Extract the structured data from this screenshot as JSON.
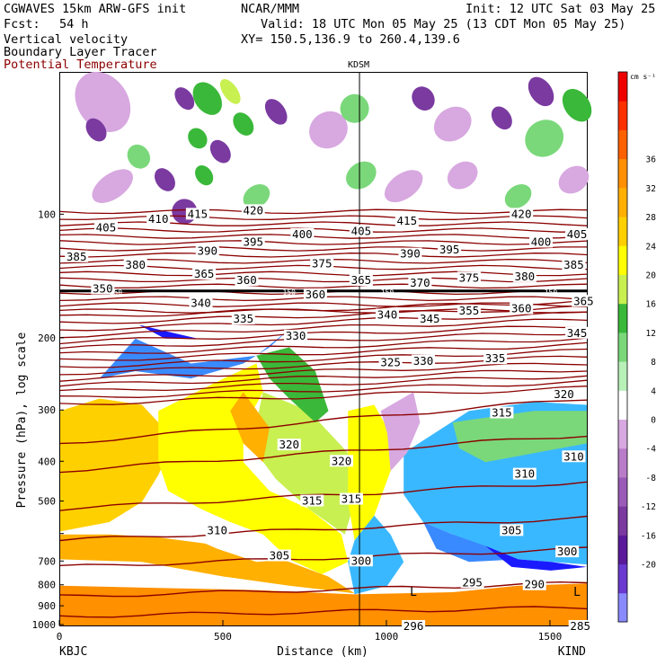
{
  "header": {
    "model": "CGWAVES 15km ARW-GFS init",
    "org": "NCAR/MMM",
    "init": "Init: 12 UTC Sat 03 May 25",
    "fcst_label": "Fcst:",
    "fcst_value": "54 h",
    "valid": "Valid: 18 UTC Mon 05 May 25 (13 CDT Mon 05 May 25)",
    "field1": "Vertical velocity",
    "field2": "Boundary Layer Tracer",
    "field3": "Potential Temperature",
    "xy": "XY= 150.5,136.9 to 260.4,139.6"
  },
  "colors": {
    "theta_lines": "#8b0000",
    "field3_text": "#8b0000",
    "tropopause": "#000000"
  },
  "chart_data": {
    "type": "heatmap",
    "title": "",
    "xlabel": "Distance (km)",
    "ylabel": "Pressure (hPa), log scale",
    "xlim": [
      0,
      1610
    ],
    "ylim": [
      1000,
      45
    ],
    "y_scale": "log",
    "x_ticks": [
      0,
      500,
      1000,
      1500
    ],
    "y_ticks": [
      100,
      200,
      300,
      400,
      500,
      600,
      700,
      800,
      900,
      1000
    ],
    "x_tick_labels": [
      "0",
      "500",
      "1000",
      "1500"
    ],
    "y_tick_labels": [
      "100",
      "200",
      "300",
      "400",
      "500",
      "",
      "700",
      "800",
      "900",
      "1000"
    ],
    "endpoints": {
      "left": "KBJC",
      "right": "KIND"
    },
    "marker": {
      "label": "KDSM",
      "x": 915
    },
    "colorbar": {
      "units": "cm s⁻¹",
      "levels": [
        -20,
        -16,
        -12,
        -8,
        -4,
        0,
        4,
        8,
        12,
        16,
        20,
        24,
        28,
        32,
        36
      ],
      "colors": [
        "#8a8aff",
        "#6a3ad0",
        "#5a1a9a",
        "#7a3aa0",
        "#9a5ab8",
        "#b87cc8",
        "#d8a8e0",
        "#ffffff",
        "#b8f0b8",
        "#7ad87a",
        "#3ab83a",
        "#c8f050",
        "#ffff00",
        "#ffd000",
        "#ffb000",
        "#ff9000",
        "#ff6000",
        "#ff3000",
        "#ee0000"
      ],
      "tick_labels": [
        "-20",
        "-16",
        "-12",
        "-8",
        "-4",
        "0",
        "4",
        "8",
        "12",
        "16",
        "20",
        "24",
        "28",
        "32",
        "36"
      ]
    },
    "theta_labels": [
      {
        "v": "420",
        "x": 590,
        "p": 98
      },
      {
        "v": "420",
        "x": 1410,
        "p": 100
      },
      {
        "v": "415",
        "x": 420,
        "p": 100
      },
      {
        "v": "415",
        "x": 1060,
        "p": 104
      },
      {
        "v": "410",
        "x": 300,
        "p": 103
      },
      {
        "v": "405",
        "x": 140,
        "p": 108
      },
      {
        "v": "405",
        "x": 920,
        "p": 110
      },
      {
        "v": "405",
        "x": 1580,
        "p": 112
      },
      {
        "v": "400",
        "x": 740,
        "p": 112
      },
      {
        "v": "400",
        "x": 1470,
        "p": 117
      },
      {
        "v": "395",
        "x": 590,
        "p": 117
      },
      {
        "v": "395",
        "x": 1190,
        "p": 122
      },
      {
        "v": "390",
        "x": 450,
        "p": 123
      },
      {
        "v": "390",
        "x": 1070,
        "p": 125
      },
      {
        "v": "385",
        "x": 50,
        "p": 127
      },
      {
        "v": "385",
        "x": 1570,
        "p": 133
      },
      {
        "v": "380",
        "x": 230,
        "p": 133
      },
      {
        "v": "380",
        "x": 1420,
        "p": 142
      },
      {
        "v": "375",
        "x": 800,
        "p": 132
      },
      {
        "v": "375",
        "x": 1250,
        "p": 143
      },
      {
        "v": "370",
        "x": 1100,
        "p": 147
      },
      {
        "v": "365",
        "x": 440,
        "p": 140
      },
      {
        "v": "365",
        "x": 920,
        "p": 145
      },
      {
        "v": "365",
        "x": 1600,
        "p": 163
      },
      {
        "v": "360",
        "x": 570,
        "p": 145
      },
      {
        "v": "360",
        "x": 780,
        "p": 157
      },
      {
        "v": "360",
        "x": 1410,
        "p": 170
      },
      {
        "v": "355",
        "x": 1250,
        "p": 172
      },
      {
        "v": "350",
        "x": 130,
        "p": 152
      },
      {
        "v": "345",
        "x": 1130,
        "p": 180
      },
      {
        "v": "345",
        "x": 1580,
        "p": 195
      },
      {
        "v": "340",
        "x": 430,
        "p": 165
      },
      {
        "v": "340",
        "x": 1000,
        "p": 176
      },
      {
        "v": "335",
        "x": 560,
        "p": 180
      },
      {
        "v": "335",
        "x": 1330,
        "p": 225
      },
      {
        "v": "330",
        "x": 720,
        "p": 198
      },
      {
        "v": "330",
        "x": 1110,
        "p": 228
      },
      {
        "v": "325",
        "x": 1010,
        "p": 230
      },
      {
        "v": "320",
        "x": 700,
        "p": 365
      },
      {
        "v": "320",
        "x": 860,
        "p": 400
      },
      {
        "v": "320",
        "x": 1540,
        "p": 275
      },
      {
        "v": "315",
        "x": 770,
        "p": 500
      },
      {
        "v": "315",
        "x": 890,
        "p": 495
      },
      {
        "v": "315",
        "x": 1350,
        "p": 305
      },
      {
        "v": "310",
        "x": 480,
        "p": 590
      },
      {
        "v": "310",
        "x": 1420,
        "p": 430
      },
      {
        "v": "310",
        "x": 1570,
        "p": 390
      },
      {
        "v": "305",
        "x": 670,
        "p": 680
      },
      {
        "v": "305",
        "x": 1380,
        "p": 590
      },
      {
        "v": "300",
        "x": 920,
        "p": 700
      },
      {
        "v": "300",
        "x": 1550,
        "p": 665
      },
      {
        "v": "296",
        "x": 1080,
        "p": 1010
      },
      {
        "v": "295",
        "x": 1260,
        "p": 790
      },
      {
        "v": "290",
        "x": 1450,
        "p": 800
      },
      {
        "v": "285",
        "x": 1590,
        "p": 1010
      }
    ],
    "tropopause_labels": [
      {
        "v": "150",
        "x": 170,
        "p": 150
      },
      {
        "v": "150",
        "x": 700,
        "p": 150
      },
      {
        "v": "150",
        "x": 1000,
        "p": 150
      },
      {
        "v": "150",
        "x": 1500,
        "p": 150
      }
    ],
    "low_markers": [
      {
        "v": "L",
        "x": 1080,
        "p": 830
      },
      {
        "v": "L",
        "x": 1580,
        "p": 830
      }
    ],
    "field_regions": [
      {
        "color": "#ff9000",
        "pts": [
          [
            0,
            1000
          ],
          [
            1610,
            1000
          ],
          [
            1610,
            790
          ],
          [
            1400,
            800
          ],
          [
            1200,
            830
          ],
          [
            900,
            840
          ],
          [
            600,
            820
          ],
          [
            300,
            810
          ],
          [
            0,
            800
          ]
        ]
      },
      {
        "color": "#ffb000",
        "pts": [
          [
            0,
            690
          ],
          [
            250,
            700
          ],
          [
            500,
            760
          ],
          [
            700,
            800
          ],
          [
            900,
            835
          ],
          [
            820,
            760
          ],
          [
            700,
            700
          ],
          [
            500,
            640
          ],
          [
            300,
            610
          ],
          [
            150,
            600
          ],
          [
            0,
            600
          ]
        ]
      },
      {
        "color": "#ffd000",
        "pts": [
          [
            0,
            590
          ],
          [
            150,
            560
          ],
          [
            250,
            500
          ],
          [
            300,
            430
          ],
          [
            330,
            380
          ],
          [
            300,
            320
          ],
          [
            250,
            290
          ],
          [
            120,
            280
          ],
          [
            0,
            300
          ]
        ]
      },
      {
        "color": "#ffff00",
        "pts": [
          [
            300,
            300
          ],
          [
            500,
            250
          ],
          [
            600,
            230
          ],
          [
            620,
            270
          ],
          [
            560,
            330
          ],
          [
            560,
            400
          ],
          [
            640,
            470
          ],
          [
            760,
            520
          ],
          [
            860,
            600
          ],
          [
            880,
            700
          ],
          [
            800,
            750
          ],
          [
            700,
            690
          ],
          [
            620,
            600
          ],
          [
            520,
            560
          ],
          [
            430,
            520
          ],
          [
            330,
            470
          ],
          [
            300,
            400
          ]
        ]
      },
      {
        "color": "#c8f050",
        "pts": [
          [
            620,
            270
          ],
          [
            760,
            300
          ],
          [
            880,
            380
          ],
          [
            900,
            500
          ],
          [
            870,
            600
          ],
          [
            760,
            520
          ],
          [
            660,
            440
          ],
          [
            600,
            380
          ],
          [
            600,
            320
          ]
        ]
      },
      {
        "color": "#3ab83a",
        "pts": [
          [
            600,
            220
          ],
          [
            700,
            210
          ],
          [
            780,
            240
          ],
          [
            820,
            300
          ],
          [
            780,
            320
          ],
          [
            700,
            280
          ],
          [
            640,
            250
          ]
        ]
      },
      {
        "color": "#3a8aff",
        "pts": [
          [
            230,
            200
          ],
          [
            400,
            230
          ],
          [
            600,
            220
          ],
          [
            700,
            190
          ],
          [
            640,
            210
          ],
          [
            560,
            230
          ],
          [
            400,
            250
          ],
          [
            230,
            240
          ],
          [
            120,
            250
          ]
        ]
      },
      {
        "color": "#1a1aff",
        "pts": [
          [
            240,
            185
          ],
          [
            320,
            200
          ],
          [
            420,
            200
          ],
          [
            300,
            190
          ]
        ]
      },
      {
        "color": "#3ab8ff",
        "pts": [
          [
            1050,
            380
          ],
          [
            1250,
            300
          ],
          [
            1450,
            285
          ],
          [
            1610,
            290
          ],
          [
            1610,
            710
          ],
          [
            1500,
            700
          ],
          [
            1400,
            690
          ],
          [
            1300,
            660
          ],
          [
            1200,
            600
          ],
          [
            1110,
            560
          ],
          [
            1050,
            480
          ]
        ]
      },
      {
        "color": "#3a8aff",
        "pts": [
          [
            1110,
            560
          ],
          [
            1200,
            600
          ],
          [
            1300,
            640
          ],
          [
            1400,
            690
          ],
          [
            1250,
            700
          ],
          [
            1150,
            650
          ]
        ]
      },
      {
        "color": "#1a1aff",
        "pts": [
          [
            1300,
            640
          ],
          [
            1400,
            690
          ],
          [
            1500,
            700
          ],
          [
            1610,
            720
          ],
          [
            1500,
            735
          ],
          [
            1380,
            720
          ]
        ]
      },
      {
        "color": "#7ad87a",
        "pts": [
          [
            1200,
            320
          ],
          [
            1320,
            310
          ],
          [
            1450,
            300
          ],
          [
            1610,
            300
          ],
          [
            1610,
            360
          ],
          [
            1450,
            380
          ],
          [
            1300,
            400
          ],
          [
            1220,
            370
          ]
        ]
      },
      {
        "color": "#ffff00",
        "pts": [
          [
            880,
            300
          ],
          [
            960,
            290
          ],
          [
            1000,
            330
          ],
          [
            1010,
            420
          ],
          [
            960,
            540
          ],
          [
            900,
            620
          ],
          [
            880,
            500
          ]
        ]
      },
      {
        "color": "#3ab8ff",
        "pts": [
          [
            960,
            540
          ],
          [
            1010,
            600
          ],
          [
            1050,
            700
          ],
          [
            1000,
            800
          ],
          [
            900,
            840
          ],
          [
            880,
            700
          ],
          [
            900,
            620
          ]
        ]
      },
      {
        "color": "#ffffff",
        "pts": [
          [
            380,
            560
          ],
          [
            520,
            560
          ],
          [
            620,
            600
          ],
          [
            700,
            690
          ],
          [
            600,
            700
          ],
          [
            480,
            650
          ],
          [
            380,
            600
          ]
        ]
      },
      {
        "color": "#d8a8e0",
        "pts": [
          [
            980,
            300
          ],
          [
            1080,
            270
          ],
          [
            1100,
            320
          ],
          [
            1060,
            380
          ],
          [
            1010,
            420
          ],
          [
            1000,
            340
          ]
        ]
      },
      {
        "color": "#ffb000",
        "pts": [
          [
            560,
            270
          ],
          [
            640,
            330
          ],
          [
            620,
            400
          ],
          [
            560,
            360
          ],
          [
            520,
            300
          ]
        ]
      }
    ],
    "upper_blobs": [
      {
        "color": "#7a3aa0",
        "x": 130,
        "p": 53,
        "rx": 14,
        "ry": 20
      },
      {
        "color": "#d8a8e0",
        "x": 130,
        "p": 53,
        "rx": 28,
        "ry": 36
      },
      {
        "color": "#7a3aa0",
        "x": 110,
        "p": 62,
        "rx": 10,
        "ry": 14
      },
      {
        "color": "#3ab83a",
        "x": 450,
        "p": 52,
        "rx": 14,
        "ry": 20
      },
      {
        "color": "#c8f050",
        "x": 520,
        "p": 50,
        "rx": 8,
        "ry": 16
      },
      {
        "color": "#7a3aa0",
        "x": 380,
        "p": 52,
        "rx": 9,
        "ry": 14
      },
      {
        "color": "#7a3aa0",
        "x": 320,
        "p": 82,
        "rx": 10,
        "ry": 14
      },
      {
        "color": "#3ab83a",
        "x": 420,
        "p": 65,
        "rx": 10,
        "ry": 12
      },
      {
        "color": "#3ab83a",
        "x": 560,
        "p": 60,
        "rx": 10,
        "ry": 14
      },
      {
        "color": "#7a3aa0",
        "x": 490,
        "p": 70,
        "rx": 10,
        "ry": 14
      },
      {
        "color": "#3ab83a",
        "x": 440,
        "p": 80,
        "rx": 9,
        "ry": 12
      },
      {
        "color": "#7a3aa0",
        "x": 660,
        "p": 56,
        "rx": 10,
        "ry": 16
      },
      {
        "color": "#7a3aa0",
        "x": 1470,
        "p": 50,
        "rx": 12,
        "ry": 18
      },
      {
        "color": "#3ab83a",
        "x": 1580,
        "p": 54,
        "rx": 14,
        "ry": 20
      },
      {
        "color": "#7a3aa0",
        "x": 1350,
        "p": 58,
        "rx": 10,
        "ry": 14
      },
      {
        "color": "#7ad87a",
        "x": 1480,
        "p": 65,
        "rx": 22,
        "ry": 20
      },
      {
        "color": "#d8a8e0",
        "x": 1200,
        "p": 60,
        "rx": 22,
        "ry": 18
      },
      {
        "color": "#7a3aa0",
        "x": 1110,
        "p": 52,
        "rx": 12,
        "ry": 14
      },
      {
        "color": "#7a3aa0",
        "x": 380,
        "p": 98,
        "rx": 14,
        "ry": 14
      },
      {
        "color": "#d8a8e0",
        "x": 820,
        "p": 62,
        "rx": 22,
        "ry": 20
      },
      {
        "color": "#7ad87a",
        "x": 900,
        "p": 55,
        "rx": 16,
        "ry": 16
      },
      {
        "color": "#7ad87a",
        "x": 920,
        "p": 80,
        "rx": 18,
        "ry": 14
      },
      {
        "color": "#d8a8e0",
        "x": 1050,
        "p": 85,
        "rx": 24,
        "ry": 14
      },
      {
        "color": "#d8a8e0",
        "x": 1230,
        "p": 80,
        "rx": 18,
        "ry": 14
      },
      {
        "color": "#7ad87a",
        "x": 1400,
        "p": 90,
        "rx": 16,
        "ry": 12
      },
      {
        "color": "#d8a8e0",
        "x": 1570,
        "p": 82,
        "rx": 18,
        "ry": 14
      },
      {
        "color": "#d8a8e0",
        "x": 160,
        "p": 85,
        "rx": 26,
        "ry": 14
      },
      {
        "color": "#7ad87a",
        "x": 600,
        "p": 90,
        "rx": 16,
        "ry": 12
      },
      {
        "color": "#7ad87a",
        "x": 240,
        "p": 72,
        "rx": 12,
        "ry": 14
      }
    ]
  }
}
